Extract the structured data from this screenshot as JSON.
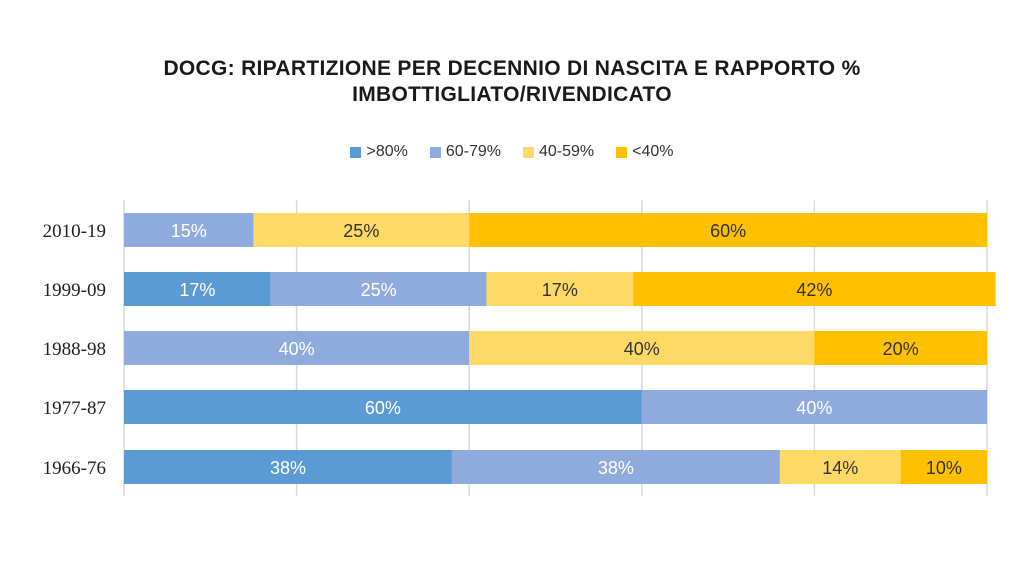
{
  "chart_data": {
    "type": "bar",
    "orientation": "horizontal",
    "stacked": true,
    "title_lines": [
      "DOCG: RIPARTIZIONE PER DECENNIO DI NASCITA E RAPPORTO %",
      "IMBOTTIGLIATO/RIVENDICATO"
    ],
    "categories": [
      "2010-19",
      "1999-09",
      "1988-98",
      "1977-87",
      "1966-76"
    ],
    "series": [
      {
        "name": ">80%",
        "color": "#5b9bd5",
        "label_color": "#ffffff",
        "values": [
          0,
          17,
          0,
          60,
          38
        ]
      },
      {
        "name": "60-79%",
        "color": "#8faadc",
        "label_color": "#ffffff",
        "values": [
          15,
          25,
          40,
          40,
          38
        ]
      },
      {
        "name": "40-59%",
        "color": "#ffd966",
        "label_color": "#333333",
        "values": [
          25,
          17,
          40,
          0,
          14
        ]
      },
      {
        "name": "<40%",
        "color": "#ffc000",
        "label_color": "#333333",
        "values": [
          60,
          42,
          20,
          0,
          10
        ]
      }
    ],
    "xlim": [
      0,
      100
    ],
    "grid": true,
    "legend_position": "top-center"
  }
}
